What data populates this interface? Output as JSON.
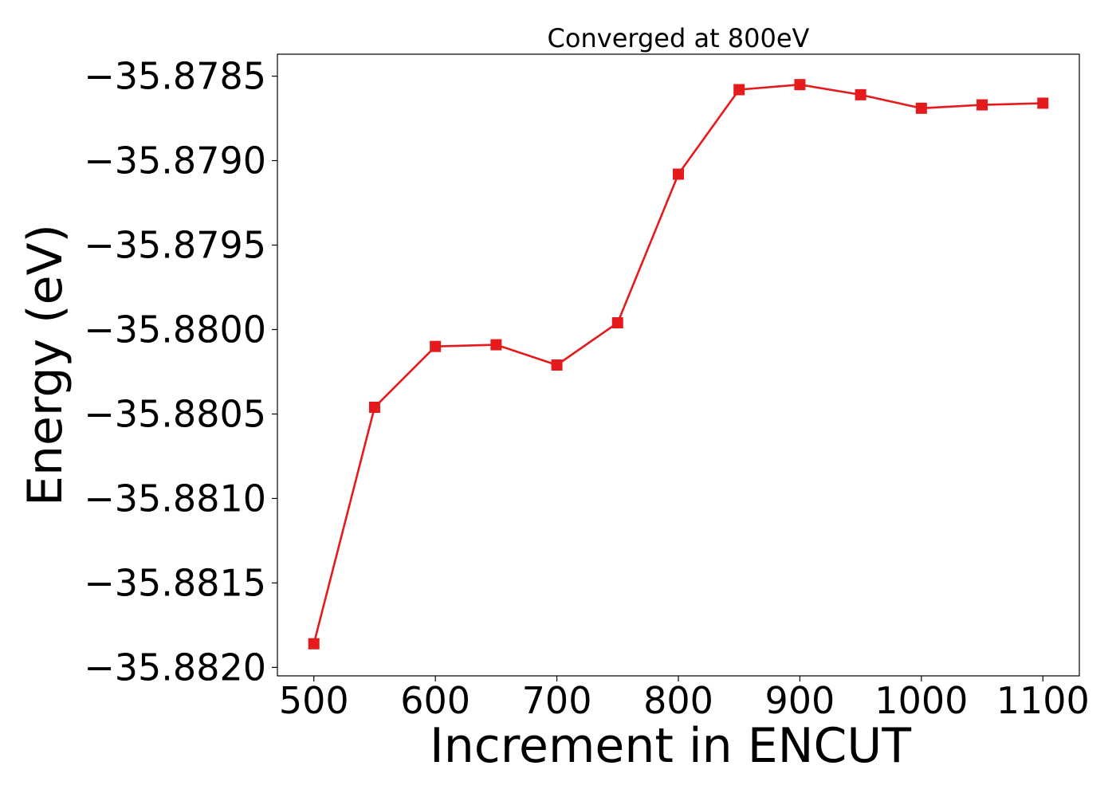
{
  "chart_data": {
    "type": "line",
    "title": "Converged at 800eV",
    "xlabel": "Increment in ENCUT",
    "ylabel": "Energy (eV)",
    "x": [
      500,
      550,
      600,
      650,
      700,
      750,
      800,
      850,
      900,
      950,
      1000,
      1050,
      1100
    ],
    "series": [
      {
        "name": "",
        "values": [
          -35.88186,
          -35.88046,
          -35.8801,
          -35.88009,
          -35.88021,
          -35.87996,
          -35.87908,
          -35.87858,
          -35.87855,
          -35.87861,
          -35.87869,
          -35.87867,
          -35.87866
        ],
        "color": "#e41a1c",
        "marker": "square"
      }
    ],
    "xticks": [
      500,
      600,
      700,
      800,
      900,
      1000,
      1100
    ],
    "yticks": [
      -35.882,
      -35.8815,
      -35.881,
      -35.8805,
      -35.88,
      -35.8795,
      -35.879,
      -35.8785
    ],
    "ytick_labels": [
      "−35.8820",
      "−35.8815",
      "−35.8810",
      "−35.8805",
      "−35.8800",
      "−35.8795",
      "−35.8790",
      "−35.8785"
    ],
    "xlim": [
      470,
      1130
    ],
    "ylim": [
      -35.88205,
      -35.87837
    ],
    "grid": false,
    "legend": "none"
  }
}
